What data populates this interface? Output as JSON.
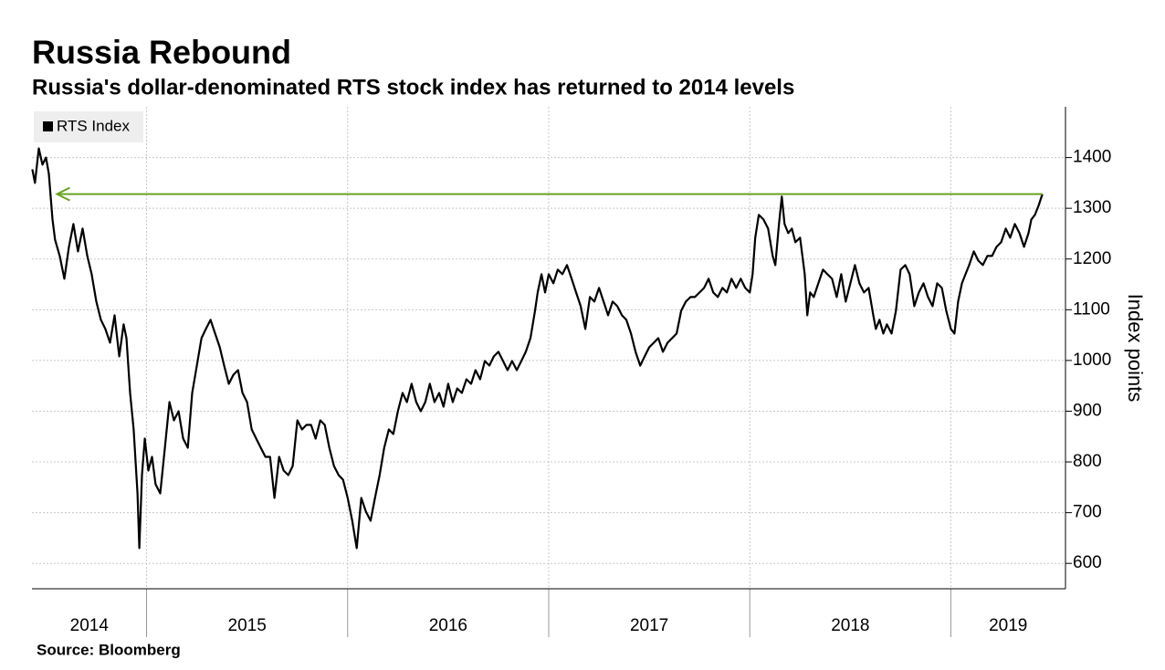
{
  "chart_data": {
    "type": "line",
    "title": "Russia Rebound",
    "subtitle": "Russia's dollar-denominated RTS stock index has returned to 2014 levels",
    "y_label": "Index points",
    "source": "Source: Bloomberg",
    "xlim": [
      2014.43,
      2019.57
    ],
    "xticks": [
      2014,
      2015,
      2016,
      2017,
      2018,
      2019
    ],
    "ylim": [
      550,
      1500
    ],
    "yticks": [
      600,
      700,
      800,
      900,
      1000,
      1100,
      1200,
      1300,
      1400
    ],
    "grid": true,
    "legend": "top-left",
    "series": [
      {
        "name": "RTS Index",
        "color": "#000000",
        "x": [
          2014.432,
          2014.445,
          2014.464,
          2014.482,
          2014.5,
          2014.514,
          2014.532,
          2014.545,
          2014.568,
          2014.591,
          2014.614,
          2014.636,
          2014.659,
          2014.682,
          2014.705,
          2014.727,
          2014.75,
          2014.773,
          2014.795,
          2014.818,
          2014.841,
          2014.864,
          2014.886,
          2014.9,
          2014.918,
          2014.936,
          2014.955,
          2014.964,
          2014.977,
          2014.991,
          2015.009,
          2015.027,
          2015.045,
          2015.068,
          2015.091,
          2015.114,
          2015.136,
          2015.159,
          2015.182,
          2015.205,
          2015.227,
          2015.25,
          2015.273,
          2015.295,
          2015.318,
          2015.341,
          2015.364,
          2015.386,
          2015.409,
          2015.432,
          2015.455,
          2015.477,
          2015.5,
          2015.523,
          2015.545,
          2015.568,
          2015.591,
          2015.614,
          2015.636,
          2015.659,
          2015.682,
          2015.705,
          2015.727,
          2015.75,
          2015.773,
          2015.795,
          2015.818,
          2015.841,
          2015.864,
          2015.886,
          2015.909,
          2015.932,
          2015.955,
          2015.977,
          2016.0,
          2016.023,
          2016.045,
          2016.068,
          2016.091,
          2016.114,
          2016.136,
          2016.159,
          2016.182,
          2016.205,
          2016.227,
          2016.25,
          2016.273,
          2016.295,
          2016.318,
          2016.341,
          2016.364,
          2016.386,
          2016.409,
          2016.432,
          2016.455,
          2016.477,
          2016.5,
          2016.523,
          2016.545,
          2016.568,
          2016.591,
          2016.614,
          2016.636,
          2016.659,
          2016.682,
          2016.705,
          2016.727,
          2016.75,
          2016.773,
          2016.795,
          2016.818,
          2016.841,
          2016.864,
          2016.886,
          2016.909,
          2016.932,
          2016.945,
          2016.964,
          2016.982,
          2017.0,
          2017.023,
          2017.045,
          2017.068,
          2017.091,
          2017.114,
          2017.136,
          2017.159,
          2017.182,
          2017.205,
          2017.227,
          2017.25,
          2017.273,
          2017.295,
          2017.318,
          2017.341,
          2017.364,
          2017.386,
          2017.409,
          2017.432,
          2017.455,
          2017.477,
          2017.5,
          2017.523,
          2017.545,
          2017.568,
          2017.591,
          2017.614,
          2017.636,
          2017.659,
          2017.682,
          2017.705,
          2017.727,
          2017.75,
          2017.773,
          2017.795,
          2017.818,
          2017.841,
          2017.864,
          2017.886,
          2017.909,
          2017.932,
          2017.955,
          2017.977,
          2018.0,
          2018.014,
          2018.027,
          2018.045,
          2018.068,
          2018.091,
          2018.114,
          2018.127,
          2018.145,
          2018.159,
          2018.173,
          2018.191,
          2018.209,
          2018.227,
          2018.25,
          2018.273,
          2018.286,
          2018.3,
          2018.318,
          2018.341,
          2018.364,
          2018.386,
          2018.409,
          2018.432,
          2018.455,
          2018.477,
          2018.5,
          2018.523,
          2018.545,
          2018.568,
          2018.591,
          2018.614,
          2018.627,
          2018.645,
          2018.664,
          2018.682,
          2018.705,
          2018.727,
          2018.75,
          2018.773,
          2018.795,
          2018.818,
          2018.841,
          2018.864,
          2018.886,
          2018.909,
          2018.932,
          2018.955,
          2018.977,
          2019.0,
          2019.018,
          2019.036,
          2019.055,
          2019.073,
          2019.091,
          2019.114,
          2019.136,
          2019.159,
          2019.182,
          2019.205,
          2019.227,
          2019.25,
          2019.273,
          2019.295,
          2019.318,
          2019.341,
          2019.364,
          2019.386,
          2019.4,
          2019.418,
          2019.436,
          2019.455
        ],
        "values": [
          1377,
          1350,
          1418,
          1386,
          1400,
          1368,
          1278,
          1238,
          1206,
          1161,
          1224,
          1269,
          1215,
          1260,
          1206,
          1170,
          1116,
          1080,
          1062,
          1035,
          1089,
          1008,
          1071,
          1044,
          936,
          864,
          738,
          630,
          774,
          846,
          783,
          810,
          756,
          738,
          828,
          918,
          882,
          900,
          846,
          828,
          936,
          990,
          1044,
          1062,
          1080,
          1053,
          1026,
          990,
          954,
          972,
          981,
          936,
          918,
          864,
          846,
          828,
          810,
          810,
          729,
          810,
          783,
          774,
          792,
          882,
          864,
          873,
          873,
          846,
          882,
          873,
          828,
          792,
          774,
          765,
          729,
          684,
          630,
          729,
          702,
          684,
          729,
          774,
          828,
          864,
          855,
          900,
          936,
          918,
          954,
          918,
          900,
          918,
          954,
          918,
          936,
          909,
          954,
          918,
          945,
          936,
          963,
          954,
          981,
          963,
          999,
          990,
          1008,
          1017,
          999,
          981,
          999,
          981,
          999,
          1017,
          1044,
          1098,
          1134,
          1170,
          1134,
          1170,
          1152,
          1179,
          1170,
          1188,
          1161,
          1134,
          1107,
          1062,
          1125,
          1116,
          1143,
          1116,
          1089,
          1116,
          1107,
          1089,
          1080,
          1053,
          1017,
          990,
          1008,
          1026,
          1035,
          1044,
          1017,
          1035,
          1044,
          1053,
          1098,
          1116,
          1125,
          1125,
          1134,
          1143,
          1161,
          1134,
          1125,
          1143,
          1134,
          1161,
          1143,
          1161,
          1143,
          1134,
          1170,
          1242,
          1287,
          1278,
          1260,
          1206,
          1188,
          1269,
          1323,
          1269,
          1251,
          1260,
          1233,
          1242,
          1170,
          1089,
          1134,
          1125,
          1152,
          1179,
          1170,
          1161,
          1125,
          1170,
          1116,
          1152,
          1188,
          1152,
          1134,
          1143,
          1089,
          1062,
          1080,
          1053,
          1071,
          1053,
          1098,
          1179,
          1188,
          1170,
          1107,
          1134,
          1152,
          1125,
          1107,
          1152,
          1143,
          1098,
          1062,
          1053,
          1116,
          1152,
          1170,
          1188,
          1215,
          1197,
          1188,
          1206,
          1206,
          1224,
          1233,
          1260,
          1242,
          1269,
          1251,
          1224,
          1251,
          1278,
          1287,
          1305,
          1328
        ]
      }
    ],
    "arrow_color": "#6aa121"
  }
}
